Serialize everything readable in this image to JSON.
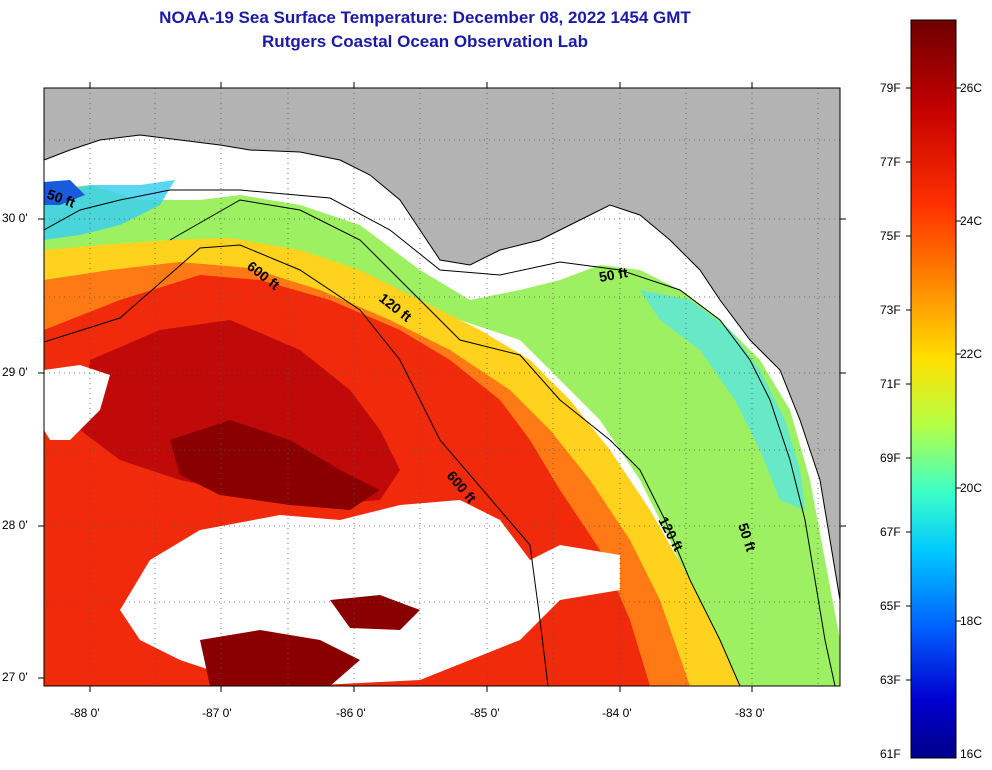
{
  "title": "NOAA-19 Sea Surface Temperature:  December 08, 2022 1454 GMT",
  "subtitle": "Rutgers Coastal Ocean Observation Lab",
  "longitude_ticks": [
    "-88 0'",
    "-87 0'",
    "-86 0'",
    "-85 0'",
    "-84 0'",
    "-83 0'"
  ],
  "latitude_ticks": [
    "30 0'",
    "29 0'",
    "28 0'",
    "27 0'"
  ],
  "isobath_labels": [
    "50 ft",
    "600 ft",
    "120 ft",
    "50 ft",
    "600 ft",
    "120 ft",
    "50 ft"
  ],
  "colorbar": {
    "fahrenheit_labels": [
      "79F",
      "77F",
      "75F",
      "73F",
      "71F",
      "69F",
      "67F",
      "65F",
      "63F",
      "61F"
    ],
    "celsius_labels": [
      "26C",
      "24C",
      "22C",
      "20C",
      "18C",
      "16C"
    ],
    "colors": [
      "#7a0000",
      "#c00000",
      "#ff2a00",
      "#ff8000",
      "#ffd000",
      "#c8ff3c",
      "#3cffc8",
      "#00c8ff",
      "#0060ff",
      "#0000c8",
      "#00008a"
    ]
  },
  "colors": {
    "land": "#b3b3b3",
    "no_data": "#ffffff",
    "title": "#1a1aa6"
  }
}
